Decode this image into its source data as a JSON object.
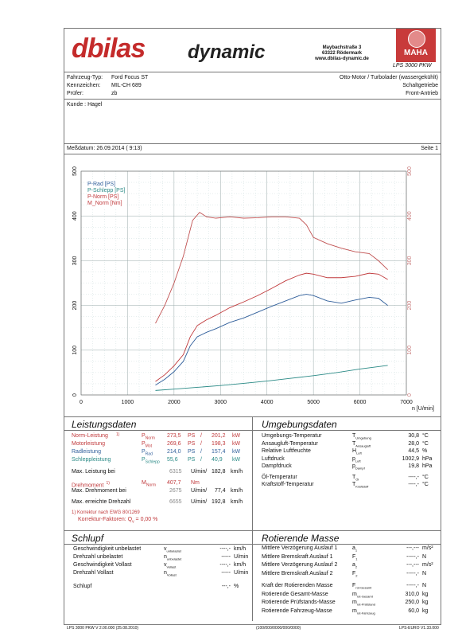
{
  "header": {
    "logo_brand": "dbilas",
    "logo_dynamic": "dynamic",
    "address_line1": "Maybachstraße 3",
    "address_line2": "63322 Rödermark",
    "address_line3": "www.dbilas-dynamic.de",
    "maha_model": "LPS 3000 PKW",
    "maha_logo_text": "MAHA"
  },
  "vehicle": {
    "type_label": "Fahrzeug-Typ:",
    "type_value": "Ford Focus ST",
    "plate_label": "Kennzeichen:",
    "plate_value": "MIL-CH 689",
    "tester_label": "Prüfer:",
    "tester_value": "zb",
    "engine": "Otto-Motor / Turbolader (wassergekühlt)",
    "gearbox": "Schaltgetriebe",
    "drive": "Front-Antrieb",
    "customer": "Kunde : Hagel"
  },
  "measure": {
    "date_label": "Meßdatum: 26.09.2014 ( 9:13)",
    "page_label": "Seite 1"
  },
  "chart_data": {
    "type": "line",
    "xlabel": "n [U/min]",
    "xlim": [
      0,
      7000
    ],
    "ylim": [
      0,
      500
    ],
    "x_ticks": [
      "0",
      "1000",
      "2000",
      "3000",
      "4000",
      "5000",
      "6000",
      "7000"
    ],
    "y_ticks": [
      "0",
      "100",
      "200",
      "300",
      "400",
      "500"
    ],
    "legend": [
      "P-Rad [PS]",
      "P-Schlepp [PS]",
      "P-Norm [PS]",
      "M_Norm [Nm]"
    ],
    "series": [
      {
        "name": "P-Rad [PS]",
        "color": "#2f5e9a",
        "x": [
          1600,
          1800,
          2000,
          2200,
          2350,
          2500,
          2700,
          2900,
          3200,
          3500,
          3800,
          4100,
          4400,
          4700,
          4850,
          5000,
          5300,
          5600,
          5900,
          6200,
          6400,
          6600
        ],
        "y": [
          22,
          35,
          52,
          75,
          110,
          130,
          140,
          148,
          162,
          172,
          185,
          198,
          210,
          222,
          225,
          222,
          210,
          205,
          212,
          218,
          216,
          200
        ]
      },
      {
        "name": "P-Schlepp [PS]",
        "color": "#2a8a86",
        "x": [
          1600,
          2000,
          2500,
          3000,
          3500,
          4000,
          4500,
          5000,
          5500,
          6000,
          6600
        ],
        "y": [
          10,
          13,
          17,
          21,
          26,
          31,
          37,
          43,
          50,
          58,
          66
        ]
      },
      {
        "name": "P-Norm [PS]",
        "color": "#c0393b",
        "x": [
          1600,
          1800,
          2000,
          2200,
          2350,
          2500,
          2700,
          2900,
          3200,
          3500,
          3800,
          4100,
          4400,
          4700,
          4850,
          5000,
          5300,
          5600,
          5900,
          6200,
          6400,
          6600
        ],
        "y": [
          30,
          45,
          65,
          90,
          130,
          155,
          168,
          178,
          195,
          208,
          222,
          238,
          255,
          268,
          272,
          270,
          262,
          262,
          265,
          272,
          270,
          258
        ]
      },
      {
        "name": "M_Norm [Nm]",
        "color": "#c05050",
        "x": [
          1600,
          1800,
          2000,
          2200,
          2400,
          2550,
          2700,
          2900,
          3200,
          3500,
          3800,
          4100,
          4400,
          4700,
          4850,
          5000,
          5300,
          5600,
          5900,
          6200,
          6400,
          6600
        ],
        "y": [
          160,
          200,
          250,
          310,
          390,
          408,
          398,
          395,
          398,
          395,
          396,
          398,
          398,
          395,
          380,
          352,
          338,
          328,
          320,
          316,
          300,
          280
        ]
      }
    ]
  },
  "performance": {
    "title": "Leistungsdaten",
    "rows": [
      {
        "label": "Norm-Leistung",
        "sup": "1)",
        "sym": "P",
        "sub": "Norm",
        "v1": "273,5",
        "u1": "PS",
        "v2": "201,2",
        "u2": "kW"
      },
      {
        "label": "Motorleistung",
        "sup": "",
        "sym": "P",
        "sub": "Mot",
        "v1": "269,6",
        "u1": "PS",
        "v2": "198,3",
        "u2": "kW"
      },
      {
        "label": "Radleistung",
        "sup": "",
        "sym": "P",
        "sub": "Rad",
        "v1": "214,0",
        "u1": "PS",
        "v2": "157,4",
        "u2": "kW"
      },
      {
        "label": "Schleppleistung",
        "sup": "",
        "sym": "P",
        "sub": "Schlepp",
        "v1": "55,6",
        "u1": "PS",
        "v2": "40,9",
        "u2": "kW"
      }
    ],
    "max_power_label": "Max. Leistung bei",
    "max_power_rpm": "6315",
    "max_power_u": "U/min/",
    "max_power_speed": "182,8",
    "max_power_speed_u": "km/h",
    "torque_label": "Drehmoment",
    "torque_sup": "1)",
    "torque_sym": "M",
    "torque_sub": "Norm",
    "torque_value": "407,7",
    "torque_unit": "Nm",
    "max_torque_label": "Max. Drehmoment bei",
    "max_torque_rpm": "2675",
    "max_torque_u": "U/min/",
    "max_torque_speed": "77,4",
    "max_torque_speed_u": "km/h",
    "max_rpm_label": "Max. erreichte Drehzahl",
    "max_rpm": "6655",
    "max_rpm_u": "U/min/",
    "max_rpm_speed": "192,8",
    "max_rpm_speed_u": "km/h",
    "correction_line1": "1) Korrektur nach EWG 80/1269",
    "correction_line2": "Korrektur-Faktoren: Q",
    "correction_sub": "v",
    "correction_value": "=   0,00 %"
  },
  "environment": {
    "title": "Umgebungsdaten",
    "rows": [
      {
        "label": "Umgebungs-Temperatur",
        "sym": "T",
        "sub": "Umgebung",
        "value": "30,8",
        "unit": "°C"
      },
      {
        "label": "Ansaugluft-Temperatur",
        "sym": "T",
        "sub": "Ansaugluft",
        "value": "28,0",
        "unit": "°C"
      },
      {
        "label": "Relative Luftfeuchte",
        "sym": "H",
        "sub": "Luft",
        "value": "44,5",
        "unit": "%"
      },
      {
        "label": "Luftdruck",
        "sym": "p",
        "sub": "Luft",
        "value": "1002,9",
        "unit": "hPa"
      },
      {
        "label": "Dampfdruck",
        "sym": "p",
        "sub": "Dampf",
        "value": "19,8",
        "unit": "hPa"
      },
      {
        "label": "Öl-Temperatur",
        "sym": "T",
        "sub": "Öl",
        "value": "----,-",
        "unit": "°C"
      },
      {
        "label": "Kraftstoff-Temperatur",
        "sym": "T",
        "sub": "Kraftstoff",
        "value": "----,-",
        "unit": "°C"
      }
    ]
  },
  "slip": {
    "title": "Schlupf",
    "rows": [
      {
        "label": "Geschwindigkeit unbelastet",
        "sym": "v",
        "sub": "unbelastet",
        "value": "----,-",
        "unit": "km/h"
      },
      {
        "label": "Drehzahl unbelastet",
        "sym": "n",
        "sub": "unbelastet",
        "value": "-----",
        "unit": "U/min"
      },
      {
        "label": "Geschwindigkeit Vollast",
        "sym": "v",
        "sub": "Vollast",
        "value": "----,-",
        "unit": "km/h"
      },
      {
        "label": "Drehzahl Vollast",
        "sym": "n",
        "sub": "Vollast",
        "value": "-----",
        "unit": "U/min"
      },
      {
        "label": "Schlupf",
        "sym": "",
        "sub": "",
        "value": "---,-",
        "unit": "%"
      }
    ]
  },
  "mass": {
    "title": "Rotierende Masse",
    "rows": [
      {
        "label": "Mittlere Verzögerung Auslauf 1",
        "sym": "a",
        "sub": "1",
        "value": "---,---",
        "unit": "m/s²"
      },
      {
        "label": "Mittlere Bremskraft Auslauf 1",
        "sym": "F",
        "sub": "1",
        "value": "-----,-",
        "unit": "N"
      },
      {
        "label": "Mittlere Verzögerung Auslauf 2",
        "sym": "a",
        "sub": "2",
        "value": "---,---",
        "unit": "m/s²"
      },
      {
        "label": "Mittlere Bremskraft Auslauf 2",
        "sym": "F",
        "sub": "2",
        "value": "-----,-",
        "unit": "N"
      },
      {
        "label": "Kraft der Rotierenden Masse",
        "sym": "F",
        "sub": "rot-Gesamt",
        "value": "-----,-",
        "unit": "N"
      },
      {
        "label": "Rotierende Gesamt-Masse",
        "sym": "m",
        "sub": "rot-Gesamt",
        "value": "310,0",
        "unit": "kg"
      },
      {
        "label": "Rotierende Prüfstands-Masse",
        "sym": "m",
        "sub": "rot-Prüfstand",
        "value": "250,0",
        "unit": "kg"
      },
      {
        "label": "Rotierende Fahrzeug-Masse",
        "sym": "m",
        "sub": "rot-Fahrzeug",
        "value": "60,0",
        "unit": "kg"
      }
    ]
  },
  "footer": {
    "left": "LPS 3000 PKW V 2.00.000 (25.08.2010)",
    "middle": "(100/000/0000/000/0000)",
    "right": "LPS-EURO V1.33.000"
  }
}
